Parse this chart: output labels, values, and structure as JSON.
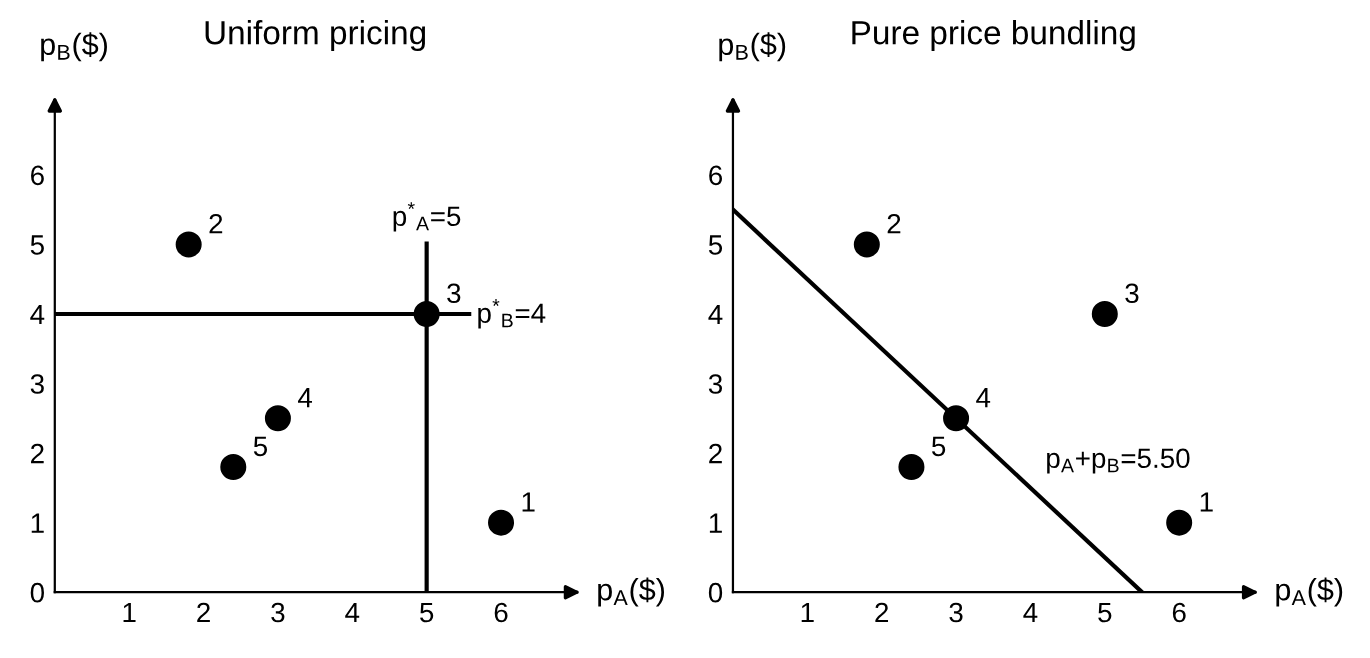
{
  "chart_data": [
    {
      "type": "scatter",
      "title": "Uniform pricing",
      "xlabel": "p$_{A}$($)",
      "ylabel": "p$_{B}$($)",
      "x": [
        6,
        1.8,
        5,
        3,
        2.4
      ],
      "values": [
        1,
        5,
        4,
        2.5,
        1.8
      ],
      "color": "#000000",
      "marker": "circle",
      "xlim": [
        0,
        7
      ],
      "ylim": [
        0,
        7
      ],
      "xticks": [
        1,
        2,
        3,
        4,
        5,
        6
      ],
      "yticks": [
        0,
        1,
        2,
        3,
        4,
        5,
        6
      ],
      "grid": false,
      "ref_lines": [
        {
          "axis": "x",
          "value": 5,
          "label": "p$^{*}$$_{A}$=5",
          "color": "#000000"
        },
        {
          "axis": "y",
          "value": 4,
          "label": "p$^{*}$$_{B}$=4",
          "color": "#000000"
        }
      ],
      "annotations": [
        {
          "text": "1",
          "x": 6,
          "y": 1
        },
        {
          "text": "2",
          "x": 1.8,
          "y": 5
        },
        {
          "text": "3",
          "x": 5,
          "y": 4
        },
        {
          "text": "4",
          "x": 3,
          "y": 2.5
        },
        {
          "text": "5",
          "x": 2.4,
          "y": 1.8
        }
      ]
    },
    {
      "type": "scatter",
      "title": "Pure price bundling",
      "xlabel": "p$_{A}$($)",
      "ylabel": "p$_{B}$($)",
      "xlim": [
        0,
        7
      ],
      "ylim": [
        0,
        7
      ],
      "xticks": [
        1,
        2,
        3,
        4,
        5,
        6
      ],
      "yticks": [
        0,
        1,
        2,
        3,
        4,
        5,
        6
      ],
      "grid": false,
      "series": [
        {
          "x": [
            6,
            1.8,
            5,
            3,
            2.4
          ],
          "values": [
            1,
            5,
            4,
            2.5,
            1.8
          ],
          "color": "#000000",
          "marker": "circle"
        },
        {
          "type": "line",
          "x": [
            0,
            5.5
          ],
          "values": [
            5.5,
            0
          ],
          "color": "#000000",
          "line_style": "solid"
        }
      ],
      "annotations": [
        {
          "text": "1",
          "x": 6,
          "y": 1
        },
        {
          "text": "2",
          "x": 1.8,
          "y": 5
        },
        {
          "text": "3",
          "x": 5,
          "y": 4
        },
        {
          "text": "4",
          "x": 3,
          "y": 2.5
        },
        {
          "text": "5",
          "x": 2.4,
          "y": 1.8
        },
        "p$_{A}$+p$_{B}$=5.50"
      ]
    }
  ]
}
